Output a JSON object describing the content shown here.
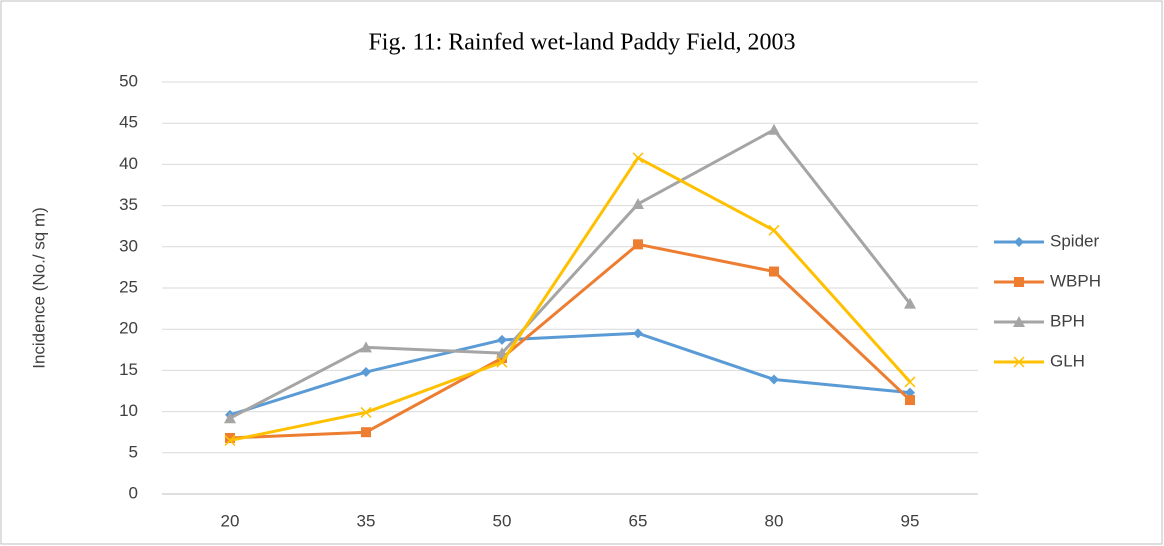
{
  "chart_data": {
    "type": "line",
    "title": "Fig. 11: Rainfed wet-land Paddy Field, 2003",
    "y_label": "Incidence (No./ sq m)",
    "categories": [
      20,
      35,
      50,
      65,
      80,
      95
    ],
    "series": [
      {
        "name": "Spider",
        "color": "#5b9bd5",
        "marker": "diamond",
        "values": [
          9.6,
          14.8,
          18.7,
          19.5,
          13.9,
          12.3
        ]
      },
      {
        "name": "WBPH",
        "color": "#ed7d31",
        "marker": "square",
        "values": [
          6.8,
          7.5,
          16.5,
          30.3,
          27.0,
          11.4
        ]
      },
      {
        "name": "BPH",
        "color": "#a5a5a5",
        "marker": "triangle",
        "values": [
          9.2,
          17.8,
          17.1,
          35.2,
          44.2,
          23.1
        ]
      },
      {
        "name": "GLH",
        "color": "#ffc000",
        "marker": "x",
        "values": [
          6.5,
          9.9,
          16.0,
          40.8,
          32.0,
          13.6
        ]
      }
    ],
    "ylim": [
      0,
      50
    ],
    "yticks": [
      0,
      5,
      10,
      15,
      20,
      25,
      30,
      35,
      40,
      45,
      50
    ],
    "grid": true,
    "legend": "right"
  }
}
